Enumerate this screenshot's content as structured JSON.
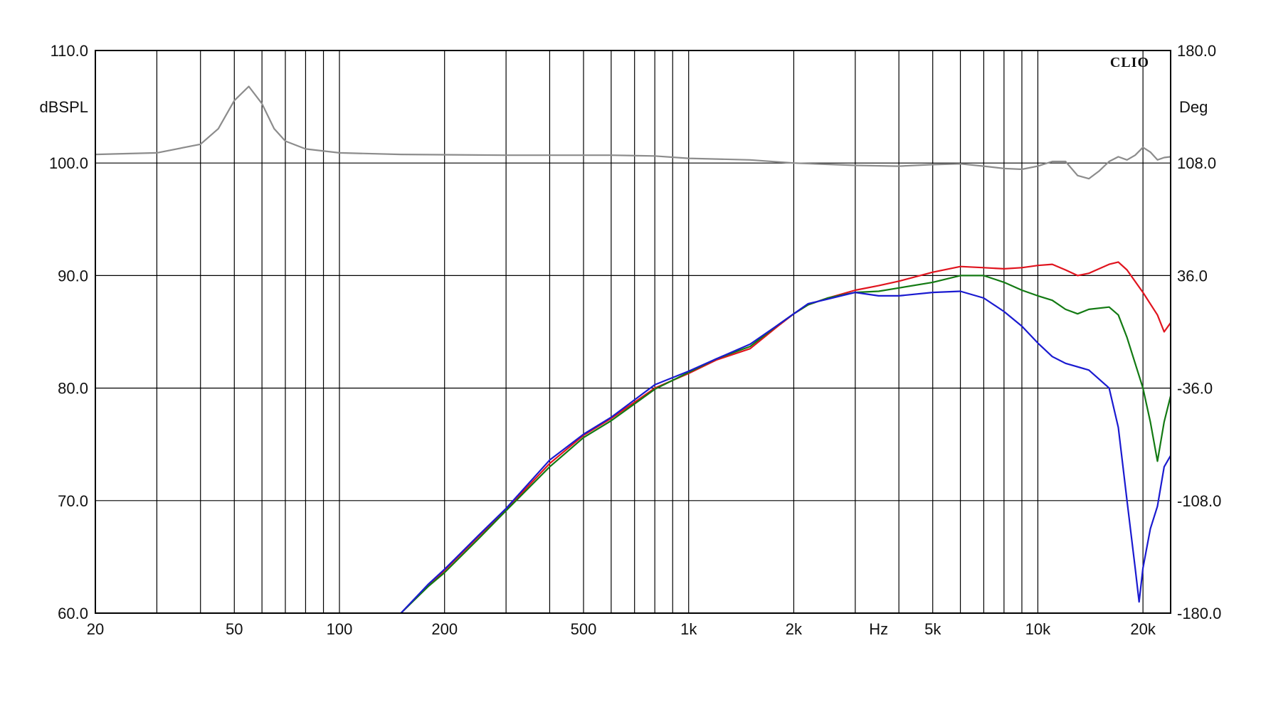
{
  "chart_data": {
    "type": "line",
    "brand": "CLIO",
    "xlabel": "Hz",
    "ylabel_left": "dBSPL",
    "ylabel_right": "Deg",
    "x_scale": "log",
    "xlim": [
      20,
      24000
    ],
    "ylim_left": [
      60,
      110
    ],
    "ylim_right": [
      -180,
      180
    ],
    "grid": true,
    "x_tick_labels": [
      {
        "value": 20,
        "label": "20"
      },
      {
        "value": 50,
        "label": "50"
      },
      {
        "value": 100,
        "label": "100"
      },
      {
        "value": 200,
        "label": "200"
      },
      {
        "value": 500,
        "label": "500"
      },
      {
        "value": 1000,
        "label": "1k"
      },
      {
        "value": 2000,
        "label": "2k"
      },
      {
        "value": 5000,
        "label": "5k"
      },
      {
        "value": 10000,
        "label": "10k"
      },
      {
        "value": 20000,
        "label": "20k"
      }
    ],
    "x_grid_values": [
      20,
      30,
      40,
      50,
      60,
      70,
      80,
      90,
      100,
      200,
      300,
      400,
      500,
      600,
      700,
      800,
      900,
      1000,
      2000,
      3000,
      4000,
      5000,
      6000,
      7000,
      8000,
      9000,
      10000,
      20000
    ],
    "y_tick_labels_left": [
      "60.0",
      "70.0",
      "80.0",
      "90.0",
      "100.0",
      "110.0"
    ],
    "y_tick_values_left": [
      60,
      70,
      80,
      90,
      100,
      110
    ],
    "y_tick_labels_right": [
      "-180.0",
      "-108.0",
      "-36.0",
      "36.0",
      "108.0",
      "180.0"
    ],
    "series": [
      {
        "color": "#e0141e",
        "points": [
          [
            150,
            60
          ],
          [
            180,
            62.5
          ],
          [
            200,
            63.8
          ],
          [
            250,
            66.8
          ],
          [
            300,
            69.2
          ],
          [
            400,
            73.3
          ],
          [
            500,
            75.8
          ],
          [
            600,
            77.3
          ],
          [
            800,
            80.0
          ],
          [
            1000,
            81.3
          ],
          [
            1200,
            82.5
          ],
          [
            1500,
            83.5
          ],
          [
            1800,
            85.5
          ],
          [
            2000,
            86.6
          ],
          [
            2200,
            87.4
          ],
          [
            2500,
            88.0
          ],
          [
            3000,
            88.7
          ],
          [
            3500,
            89.1
          ],
          [
            4000,
            89.5
          ],
          [
            5000,
            90.3
          ],
          [
            6000,
            90.8
          ],
          [
            7000,
            90.7
          ],
          [
            8000,
            90.6
          ],
          [
            9000,
            90.7
          ],
          [
            10000,
            90.9
          ],
          [
            11000,
            91.0
          ],
          [
            12000,
            90.5
          ],
          [
            13000,
            90.0
          ],
          [
            14000,
            90.2
          ],
          [
            16000,
            91.0
          ],
          [
            17000,
            91.2
          ],
          [
            18000,
            90.5
          ],
          [
            20000,
            88.5
          ],
          [
            22000,
            86.5
          ],
          [
            23000,
            85.0
          ],
          [
            24000,
            85.8
          ]
        ]
      },
      {
        "color": "#137a13",
        "points": [
          [
            150,
            60
          ],
          [
            180,
            62.4
          ],
          [
            200,
            63.6
          ],
          [
            250,
            66.6
          ],
          [
            300,
            69.1
          ],
          [
            400,
            73.0
          ],
          [
            500,
            75.6
          ],
          [
            600,
            77.1
          ],
          [
            800,
            79.9
          ],
          [
            1000,
            81.4
          ],
          [
            1200,
            82.6
          ],
          [
            1500,
            83.7
          ],
          [
            1800,
            85.6
          ],
          [
            2000,
            86.6
          ],
          [
            2200,
            87.4
          ],
          [
            2500,
            88.0
          ],
          [
            3000,
            88.5
          ],
          [
            3500,
            88.6
          ],
          [
            4000,
            88.9
          ],
          [
            5000,
            89.4
          ],
          [
            6000,
            90.0
          ],
          [
            7000,
            90.0
          ],
          [
            8000,
            89.4
          ],
          [
            9000,
            88.7
          ],
          [
            10000,
            88.2
          ],
          [
            11000,
            87.8
          ],
          [
            12000,
            87.0
          ],
          [
            13000,
            86.6
          ],
          [
            14000,
            87.0
          ],
          [
            16000,
            87.2
          ],
          [
            17000,
            86.5
          ],
          [
            18000,
            84.5
          ],
          [
            20000,
            80.0
          ],
          [
            21000,
            77.0
          ],
          [
            22000,
            73.5
          ],
          [
            23000,
            77.0
          ],
          [
            24000,
            79.3
          ]
        ]
      },
      {
        "color": "#1a1ad0",
        "points": [
          [
            150,
            60
          ],
          [
            180,
            62.6
          ],
          [
            200,
            63.9
          ],
          [
            250,
            66.9
          ],
          [
            300,
            69.3
          ],
          [
            400,
            73.6
          ],
          [
            500,
            75.9
          ],
          [
            600,
            77.4
          ],
          [
            800,
            80.3
          ],
          [
            1000,
            81.5
          ],
          [
            1200,
            82.6
          ],
          [
            1500,
            83.9
          ],
          [
            1800,
            85.6
          ],
          [
            2000,
            86.6
          ],
          [
            2200,
            87.5
          ],
          [
            2500,
            87.9
          ],
          [
            3000,
            88.5
          ],
          [
            3500,
            88.2
          ],
          [
            4000,
            88.2
          ],
          [
            5000,
            88.5
          ],
          [
            6000,
            88.6
          ],
          [
            7000,
            88.0
          ],
          [
            8000,
            86.8
          ],
          [
            9000,
            85.5
          ],
          [
            10000,
            84.0
          ],
          [
            11000,
            82.8
          ],
          [
            12000,
            82.2
          ],
          [
            14000,
            81.6
          ],
          [
            16000,
            80.0
          ],
          [
            17000,
            76.5
          ],
          [
            18000,
            70.0
          ],
          [
            19000,
            64.0
          ],
          [
            19500,
            61.0
          ],
          [
            20000,
            64.0
          ],
          [
            21000,
            67.5
          ],
          [
            22000,
            69.5
          ],
          [
            23000,
            73.0
          ],
          [
            24000,
            74.0
          ]
        ]
      },
      {
        "axis": "right",
        "color": "#8c8c8c",
        "points": [
          [
            20,
            113.5
          ],
          [
            30,
            114.5
          ],
          [
            40,
            120
          ],
          [
            45,
            130
          ],
          [
            50,
            148
          ],
          [
            55,
            157
          ],
          [
            60,
            146
          ],
          [
            65,
            130
          ],
          [
            70,
            122
          ],
          [
            80,
            117
          ],
          [
            100,
            114.5
          ],
          [
            150,
            113.5
          ],
          [
            300,
            113
          ],
          [
            600,
            113
          ],
          [
            800,
            112.5
          ],
          [
            1000,
            111
          ],
          [
            1500,
            110
          ],
          [
            2000,
            108
          ],
          [
            3000,
            106.5
          ],
          [
            4000,
            106
          ],
          [
            5000,
            107
          ],
          [
            6000,
            107.5
          ],
          [
            7000,
            106
          ],
          [
            8000,
            104.5
          ],
          [
            9000,
            104
          ],
          [
            10000,
            106
          ],
          [
            11000,
            109
          ],
          [
            12000,
            109
          ],
          [
            13000,
            100
          ],
          [
            14000,
            98
          ],
          [
            15000,
            103
          ],
          [
            16000,
            109
          ],
          [
            17000,
            112
          ],
          [
            18000,
            110
          ],
          [
            19000,
            113
          ],
          [
            20000,
            118
          ],
          [
            21000,
            115
          ],
          [
            22000,
            110
          ],
          [
            23000,
            111.5
          ],
          [
            24000,
            112
          ]
        ]
      }
    ]
  }
}
